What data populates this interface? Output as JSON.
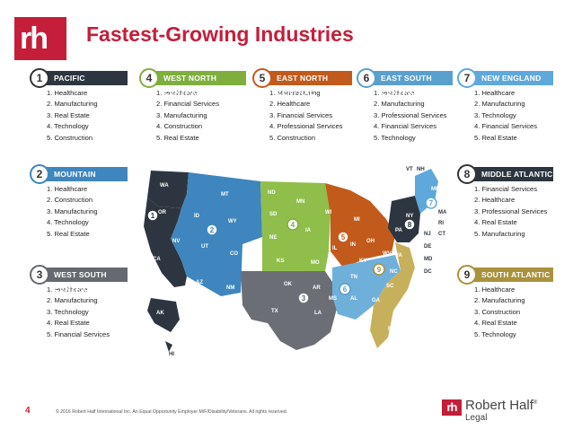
{
  "header": {
    "logo_text": "rh",
    "title": "Fastest-Growing Industries"
  },
  "regions": [
    {
      "num": "1",
      "name": "PACIFIC",
      "color": "#2d3640",
      "items": [
        "1. Healthcare",
        "2. Manufacturing",
        "3. Real Estate",
        "4. Technology",
        "5. Construction"
      ]
    },
    {
      "num": "4",
      "name": "WEST NORTH CENTRAL",
      "color": "#7fae3e",
      "items": [
        "1. Healthcare",
        "2. Financial Services",
        "3. Manufacturing",
        "4. Construction",
        "5. Real Estate"
      ]
    },
    {
      "num": "5",
      "name": "EAST NORTH CENTRAL",
      "color": "#c25a1c",
      "items": [
        "1. Manufacturing",
        "2. Healthcare",
        "3. Financial Services",
        "4. Professional Services",
        "5. Construction"
      ]
    },
    {
      "num": "6",
      "name": "EAST SOUTH CENTRAL",
      "color": "#5aa0cf",
      "items": [
        "1. Healthcare",
        "2. Manufacturing",
        "3. Professional Services",
        "4. Financial Services",
        "5. Technology"
      ]
    },
    {
      "num": "7",
      "name": "NEW ENGLAND",
      "color": "#5ea8dc",
      "items": [
        "1. Healthcare",
        "2. Manufacturing",
        "3. Technology",
        "4. Financial Services",
        "5. Real Estate"
      ]
    },
    {
      "num": "2",
      "name": "MOUNTAIN",
      "color": "#3e86bd",
      "items": [
        "1. Healthcare",
        "2. Construction",
        "3. Manufacturing",
        "4. Technology",
        "5. Real Estate"
      ]
    },
    {
      "num": "8",
      "name": "MIDDLE ATLANTIC",
      "color": "#2d3640",
      "items": [
        "1. Financial Services",
        "2. Healthcare",
        "3. Professional Services",
        "4. Real Estate",
        "5. Manufacturing"
      ]
    },
    {
      "num": "3",
      "name": "WEST SOUTH CENTRAL",
      "color": "#666a70",
      "items": [
        "1. Healthcare",
        "2. Manufacturing",
        "3. Technology",
        "4. Real Estate",
        "5. Financial Services"
      ]
    },
    {
      "num": "9",
      "name": "SOUTH ATLANTIC",
      "color": "#a9923d",
      "items": [
        "1. Healthcare",
        "2. Manufacturing",
        "3. Construction",
        "4. Real Estate",
        "5. Technology"
      ]
    }
  ],
  "map": {
    "states": [
      "WA",
      "OR",
      "CA",
      "AK",
      "HI",
      "MT",
      "ID",
      "WY",
      "NV",
      "UT",
      "CO",
      "AZ",
      "NM",
      "ND",
      "SD",
      "NE",
      "KS",
      "MN",
      "IA",
      "MO",
      "WI",
      "MI",
      "IL",
      "IN",
      "OH",
      "OK",
      "TX",
      "AR",
      "LA",
      "KY",
      "TN",
      "MS",
      "AL",
      "WV",
      "VA",
      "NC",
      "SC",
      "GA",
      "FL",
      "NY",
      "PA",
      "NJ",
      "DE",
      "MD",
      "DC",
      "VT",
      "NH",
      "ME",
      "MA",
      "RI",
      "CT"
    ],
    "markers": [
      "1",
      "2",
      "3",
      "4",
      "5",
      "6",
      "7",
      "8",
      "9"
    ]
  },
  "footer": {
    "page_number": "4",
    "copyright": "© 2016 Robert Half International Inc. An Equal Opportunity Employer M/F/Disability/Veterans. All rights reserved.",
    "brand_mark": "rh",
    "brand_name": "Robert Half",
    "brand_reg": "®",
    "brand_sub": "Legal"
  }
}
